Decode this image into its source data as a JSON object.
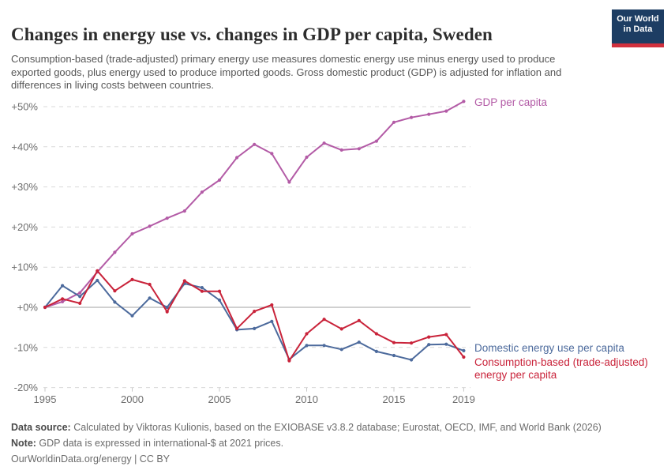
{
  "header": {
    "title": "Changes in energy use vs. changes in GDP per capita, Sweden",
    "subtitle": "Consumption-based (trade-adjusted) primary energy use measures domestic energy use minus energy used to produce exported goods, plus energy used to produce imported goods. Gross domestic product (GDP) is adjusted for inflation and differences in living costs between countries.",
    "logo": {
      "line1": "Our World",
      "line2": "in Data",
      "bg_color": "#1d3d63",
      "accent_color": "#d1303d"
    }
  },
  "chart_data": {
    "type": "line",
    "title": "Changes in energy use vs. changes in GDP per capita, Sweden",
    "x": [
      1995,
      1996,
      1997,
      1998,
      1999,
      2000,
      2001,
      2002,
      2003,
      2004,
      2005,
      2006,
      2007,
      2008,
      2009,
      2010,
      2011,
      2012,
      2013,
      2014,
      2015,
      2016,
      2017,
      2018,
      2019
    ],
    "series": [
      {
        "name": "GDP per capita",
        "color": "#b35ba6",
        "label_lines": [
          "GDP per capita"
        ],
        "values": [
          0,
          1.4,
          3.6,
          8.8,
          13.7,
          18.3,
          20.2,
          22.2,
          24.0,
          28.7,
          31.7,
          37.3,
          40.6,
          38.3,
          31.2,
          37.4,
          40.9,
          39.2,
          39.5,
          41.4,
          46.1,
          47.3,
          48.1,
          48.9,
          51.3
        ]
      },
      {
        "name": "Domestic energy use per capita",
        "color": "#4c6a9c",
        "label_lines": [
          "Domestic energy use per capita"
        ],
        "values": [
          0,
          5.4,
          2.7,
          6.7,
          1.3,
          -2.1,
          2.3,
          0.0,
          5.9,
          4.9,
          1.8,
          -5.6,
          -5.3,
          -3.5,
          -13.0,
          -9.5,
          -9.5,
          -10.5,
          -8.7,
          -11.0,
          -12.0,
          -13.1,
          -9.3,
          -9.2,
          -10.8
        ]
      },
      {
        "name": "Consumption-based (trade-adjusted) energy per capita",
        "color": "#c9233a",
        "label_lines": [
          "Consumption-based (trade-adjusted)",
          "energy per capita"
        ],
        "values": [
          0,
          2.1,
          1.0,
          9.1,
          4.1,
          6.9,
          5.7,
          -1.1,
          6.6,
          4.0,
          4.0,
          -5.3,
          -1.0,
          0.6,
          -13.3,
          -6.6,
          -3.0,
          -5.4,
          -3.3,
          -6.6,
          -8.8,
          -8.9,
          -7.4,
          -6.8,
          -12.4
        ]
      }
    ],
    "ylim": [
      -20,
      50
    ],
    "yticks": [
      {
        "value": 50,
        "label": "+50%"
      },
      {
        "value": 40,
        "label": "+40%"
      },
      {
        "value": 30,
        "label": "+30%"
      },
      {
        "value": 20,
        "label": "+20%"
      },
      {
        "value": 10,
        "label": "+10%"
      },
      {
        "value": 0,
        "label": "+0%"
      },
      {
        "value": -10,
        "label": "-10%"
      },
      {
        "value": -20,
        "label": "-20%"
      }
    ],
    "xticks": [
      {
        "value": 1995,
        "label": "1995"
      },
      {
        "value": 2000,
        "label": "2000"
      },
      {
        "value": 2005,
        "label": "2005"
      },
      {
        "value": 2010,
        "label": "2010"
      },
      {
        "value": 2015,
        "label": "2015"
      },
      {
        "value": 2019,
        "label": "2019"
      }
    ],
    "grid": "horizontal-dashed",
    "zero_line": true,
    "legend_position": "end-of-line-labels-right",
    "grid_color": "#d9d9d9",
    "zero_line_color": "#b3b3b3"
  },
  "footer": {
    "source_label": "Data source:",
    "source_text": " Calculated by Viktoras Kulionis, based on the EXIOBASE v3.8.2 database; Eurostat, OECD, IMF, and World Bank (2026)",
    "note_label": "Note:",
    "note_text": " GDP data is expressed in international-$ at 2021 prices.",
    "license": "OurWorldinData.org/energy | CC BY"
  }
}
